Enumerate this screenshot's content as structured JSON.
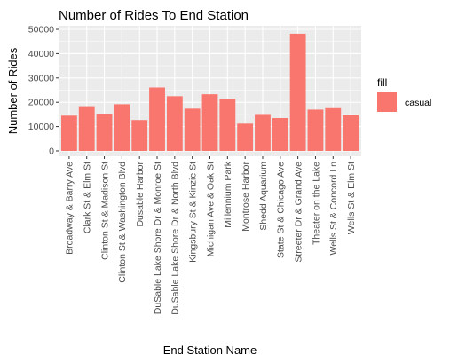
{
  "chart_data": {
    "type": "bar",
    "title": "Number of Rides To End Station",
    "xlabel": "End Station Name",
    "ylabel": "Number of Rides",
    "ylim": [
      0,
      50000
    ],
    "yticks": [
      0,
      10000,
      20000,
      30000,
      40000,
      50000
    ],
    "ytick_labels": [
      "0",
      "10000",
      "20000",
      "30000",
      "40000",
      "50000"
    ],
    "categories": [
      "Broadway & Barry Ave",
      "Clark St & Elm St",
      "Clinton St & Madison St",
      "Clinton St & Washington Blvd",
      "Dusable Harbor",
      "DuSable Lake Shore Dr & Monroe St",
      "DuSable Lake Shore Dr & North Blvd",
      "Kingsbury St & Kinzie St",
      "Michigan Ave & Oak St",
      "Millennium Park",
      "Montrose Harbor",
      "Shedd Aquarium",
      "State St & Chicago Ave",
      "Streeter Dr & Grand Ave",
      "Theater on the Lake",
      "Wells St & Concord Ln",
      "Wells St & Elm St"
    ],
    "series": [
      {
        "name": "casual",
        "color": "#F8766D",
        "values": [
          14500,
          18400,
          15200,
          19200,
          12700,
          26100,
          22500,
          17400,
          23300,
          21500,
          11200,
          14800,
          13500,
          48200,
          17000,
          17600,
          14600
        ]
      }
    ],
    "legend": {
      "title": "fill",
      "position": "right"
    },
    "grid": true,
    "panel_background": "#EBEBEB",
    "grid_color": "#FFFFFF"
  }
}
